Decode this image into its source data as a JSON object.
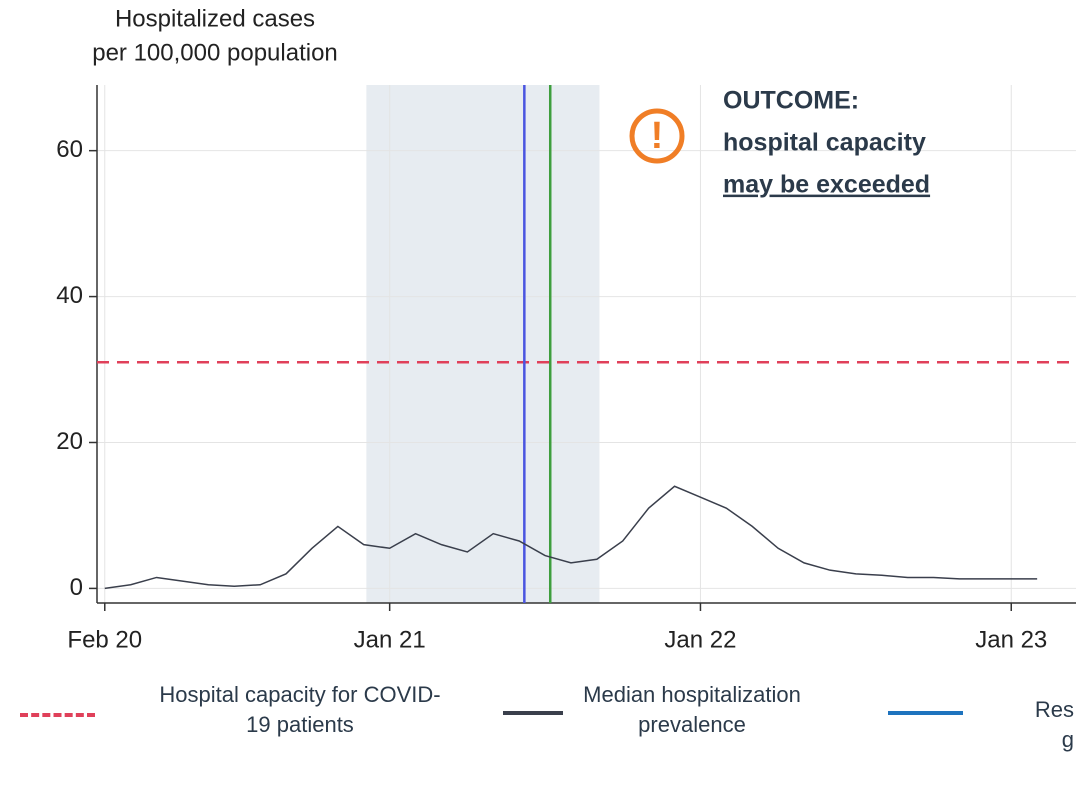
{
  "chart_data": {
    "type": "line",
    "y_title": [
      "Hospitalized cases",
      "per 100,000 population"
    ],
    "x": [
      0,
      1,
      2,
      3,
      4,
      5,
      6,
      7,
      8,
      9,
      10,
      11,
      12,
      13,
      14,
      15,
      16,
      17,
      18,
      19,
      20,
      21,
      22,
      23,
      24,
      25,
      26,
      27,
      28,
      29,
      30,
      31,
      32,
      33,
      34,
      35,
      36
    ],
    "xlim": [
      -0.3,
      37.5
    ],
    "xticks": [
      {
        "value": 0,
        "label": "Feb 20"
      },
      {
        "value": 11,
        "label": "Jan 21"
      },
      {
        "value": 23,
        "label": "Jan 22"
      },
      {
        "value": 35,
        "label": "Jan 23"
      }
    ],
    "ylim": [
      -2,
      69
    ],
    "yticks": [
      0,
      20,
      40,
      60
    ],
    "grid": true,
    "series": [
      {
        "name": "Median hospitalization prevalence",
        "color": "#3a3f4c",
        "values": [
          0,
          0.5,
          1.5,
          1,
          0.5,
          0.3,
          0.5,
          2,
          5.5,
          8.5,
          6,
          5.5,
          7.5,
          6,
          5,
          7.5,
          6.5,
          4.5,
          3.5,
          4,
          6.5,
          11,
          14,
          12.5,
          11,
          8.5,
          5.5,
          3.5,
          2.5,
          2,
          1.8,
          1.5,
          1.5,
          1.3,
          1.3,
          1.3,
          1.3
        ]
      }
    ],
    "capacity": {
      "name": "Hospital capacity for COVID-19 patients",
      "value": 31,
      "color": "#e0405a"
    },
    "shaded_range": [
      10.1,
      19.1
    ],
    "vlines": [
      {
        "value": 16.2,
        "color": "#4a55e0"
      },
      {
        "value": 17.2,
        "color": "#3e9e3e"
      }
    ],
    "third_legend": {
      "name": "Res g",
      "color": "#1e73be"
    },
    "annotation": {
      "symbol": "!",
      "lines": [
        "OUTCOME:",
        "hospital capacity",
        "may be exceeded"
      ],
      "color": "#f07e26"
    }
  }
}
